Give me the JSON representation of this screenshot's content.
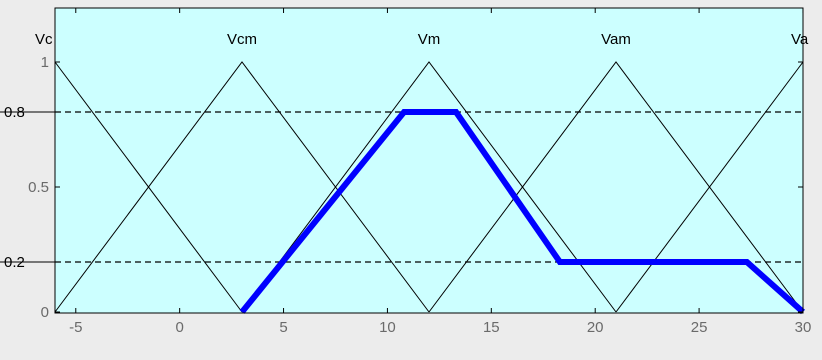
{
  "chart_data": {
    "type": "line",
    "title": "",
    "xlabel": "",
    "ylabel": "",
    "xlim": [
      -6,
      30
    ],
    "ylim": [
      0,
      1
    ],
    "grid": false,
    "x_ticks": [
      {
        "value": -5,
        "label": "-5"
      },
      {
        "value": 0,
        "label": "0"
      },
      {
        "value": 5,
        "label": "5"
      },
      {
        "value": 10,
        "label": "10"
      },
      {
        "value": 15,
        "label": "15"
      },
      {
        "value": 20,
        "label": "20"
      },
      {
        "value": 25,
        "label": "25"
      },
      {
        "value": 30,
        "label": "30"
      }
    ],
    "y_ticks": [
      {
        "value": 0,
        "label": "0"
      },
      {
        "value": 0.5,
        "label": "0.5"
      },
      {
        "value": 1,
        "label": "1"
      }
    ],
    "reference_lines": [
      {
        "y": 0.8,
        "label": "0.8",
        "style": "dashed"
      },
      {
        "y": 0.2,
        "label": "0.2",
        "style": "dashed"
      }
    ],
    "membership_functions": [
      {
        "name": "Vc",
        "x": [
          -6,
          -6,
          3
        ]
      },
      {
        "name": "Vcm",
        "x": [
          -6,
          3,
          12
        ]
      },
      {
        "name": "Vm",
        "x": [
          3,
          12,
          21
        ]
      },
      {
        "name": "Vam",
        "x": [
          12,
          21,
          30
        ]
      },
      {
        "name": "Va",
        "x": [
          21,
          30,
          30
        ]
      }
    ],
    "output_curve": {
      "color": "#0000ff",
      "x": [
        3,
        10.8,
        13.3,
        18.3,
        27.3,
        30
      ],
      "y": [
        0,
        0.8,
        0.8,
        0.2,
        0.2,
        0
      ]
    },
    "colors": {
      "plot_background": "#ccffff",
      "figure_background": "#ececec",
      "mf_line": "#000000",
      "axis_text": "#6a6a6a"
    }
  }
}
